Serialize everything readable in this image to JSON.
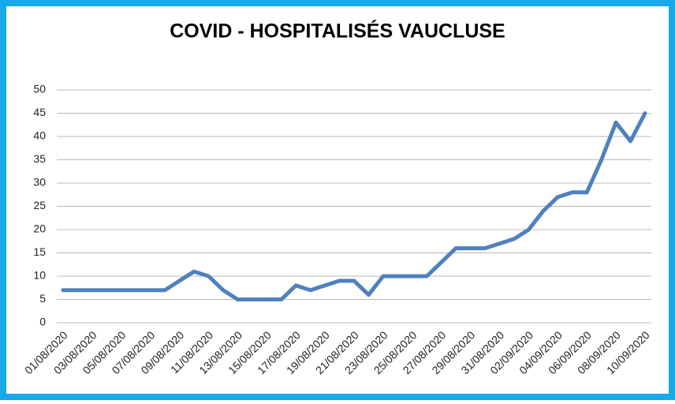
{
  "chart_data": {
    "type": "line",
    "title": "COVID - HOSPITALISÉS VAUCLUSE",
    "categories": [
      "01/08/2020",
      null,
      "03/08/2020",
      null,
      "05/08/2020",
      null,
      "07/08/2020",
      null,
      "09/08/2020",
      null,
      "11/08/2020",
      null,
      "13/08/2020",
      null,
      "15/08/2020",
      null,
      "17/08/2020",
      null,
      "19/08/2020",
      null,
      "21/08/2020",
      null,
      "23/08/2020",
      null,
      "25/08/2020",
      null,
      "27/08/2020",
      null,
      "29/08/2020",
      null,
      "31/08/2020",
      null,
      "02/09/2020",
      null,
      "04/09/2020",
      null,
      "06/09/2020",
      null,
      "08/09/2020",
      null,
      "10/09/2020"
    ],
    "series": [
      {
        "color": "#4f81bd",
        "values": [
          7,
          7,
          7,
          7,
          7,
          7,
          7,
          7,
          9,
          11,
          10,
          7,
          5,
          5,
          5,
          5,
          8,
          7,
          8,
          9,
          9,
          6,
          10,
          10,
          10,
          10,
          13,
          16,
          16,
          16,
          17,
          18,
          20,
          24,
          27,
          28,
          28,
          35,
          43,
          39,
          45
        ]
      }
    ],
    "ylim": [
      0,
      50
    ],
    "yticks": [
      0,
      5,
      10,
      15,
      20,
      25,
      30,
      35,
      40,
      45,
      50
    ],
    "grid": true
  }
}
